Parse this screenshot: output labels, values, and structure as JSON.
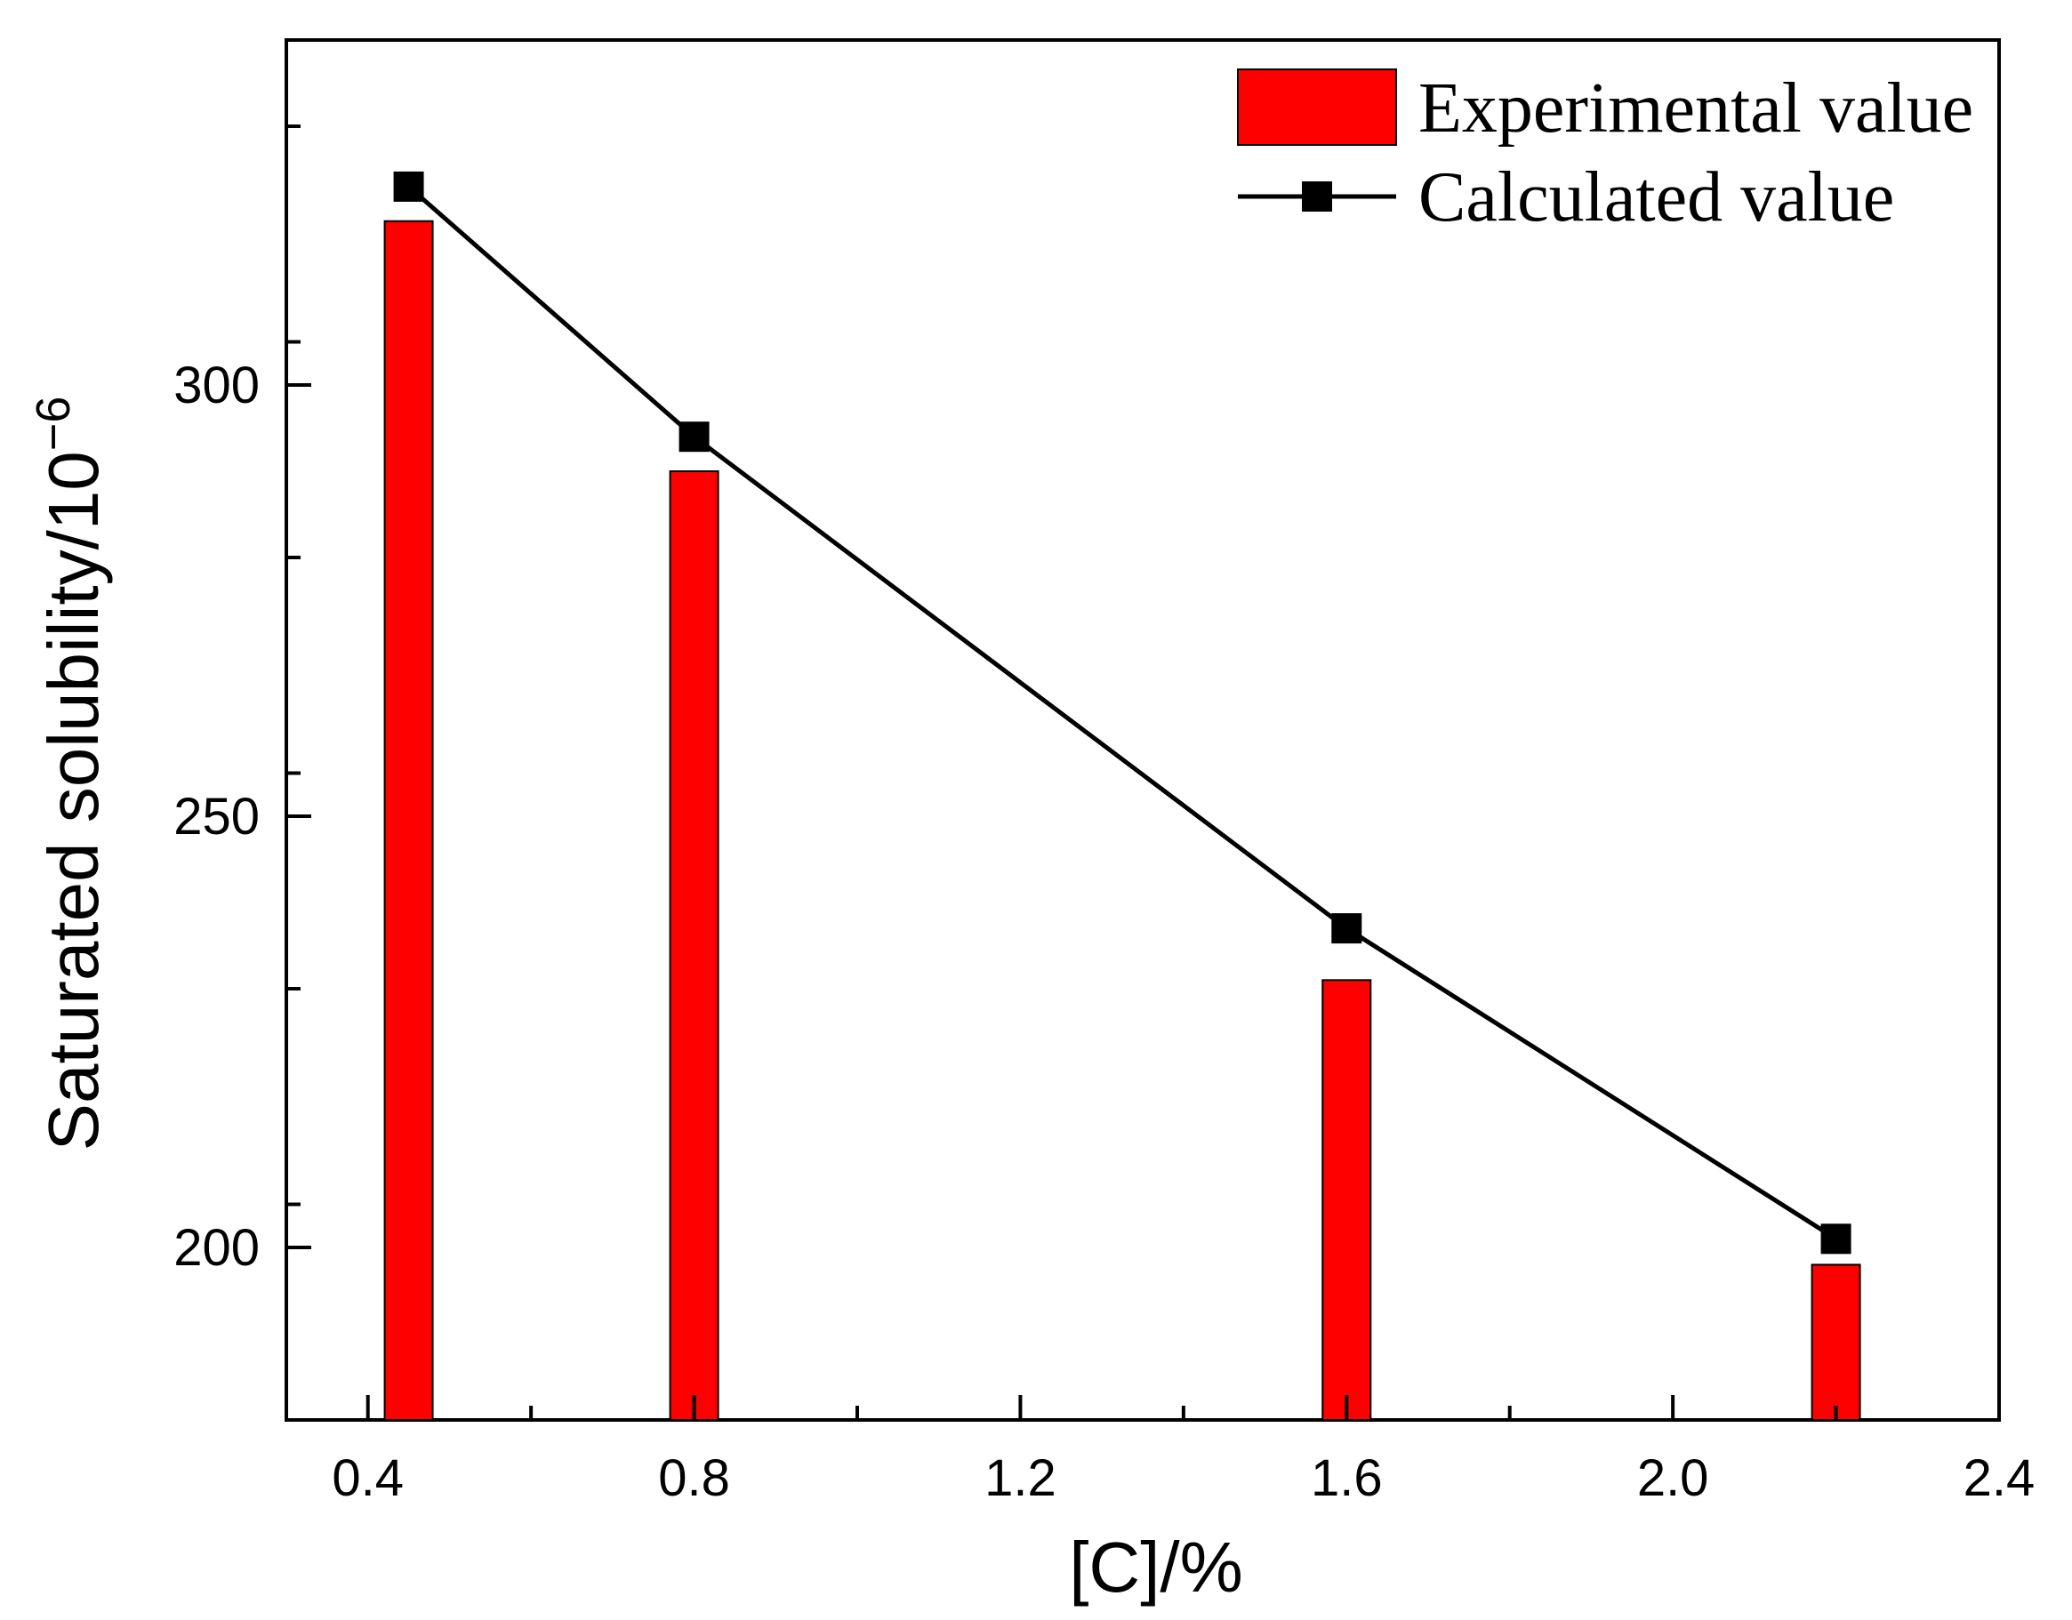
{
  "chart_data": {
    "type": "bar",
    "title": "",
    "xlabel": "[C]/%",
    "ylabel": "Saturated solubility/10",
    "ylabel_exponent": "−6",
    "xlim": [
      0.3,
      2.4
    ],
    "ylim": [
      180,
      340
    ],
    "x_ticks": [
      0.4,
      0.8,
      1.2,
      1.6,
      2.0,
      2.4
    ],
    "x_tick_labels": [
      "0.4",
      "0.8",
      "1.2",
      "1.6",
      "2.0",
      "2.4"
    ],
    "y_ticks": [
      200,
      250,
      300
    ],
    "y_tick_labels": [
      "200",
      "250",
      "300"
    ],
    "x": [
      0.45,
      0.8,
      1.6,
      2.2
    ],
    "series": [
      {
        "name": "Experimental value",
        "kind": "bar",
        "color": "#ff0000",
        "values": [
          319,
          290,
          231,
          198
        ]
      },
      {
        "name": "Calculated value",
        "kind": "line",
        "color": "#000000",
        "values": [
          323,
          294,
          237,
          201
        ]
      }
    ],
    "legend_position": "top-right",
    "grid": false
  }
}
